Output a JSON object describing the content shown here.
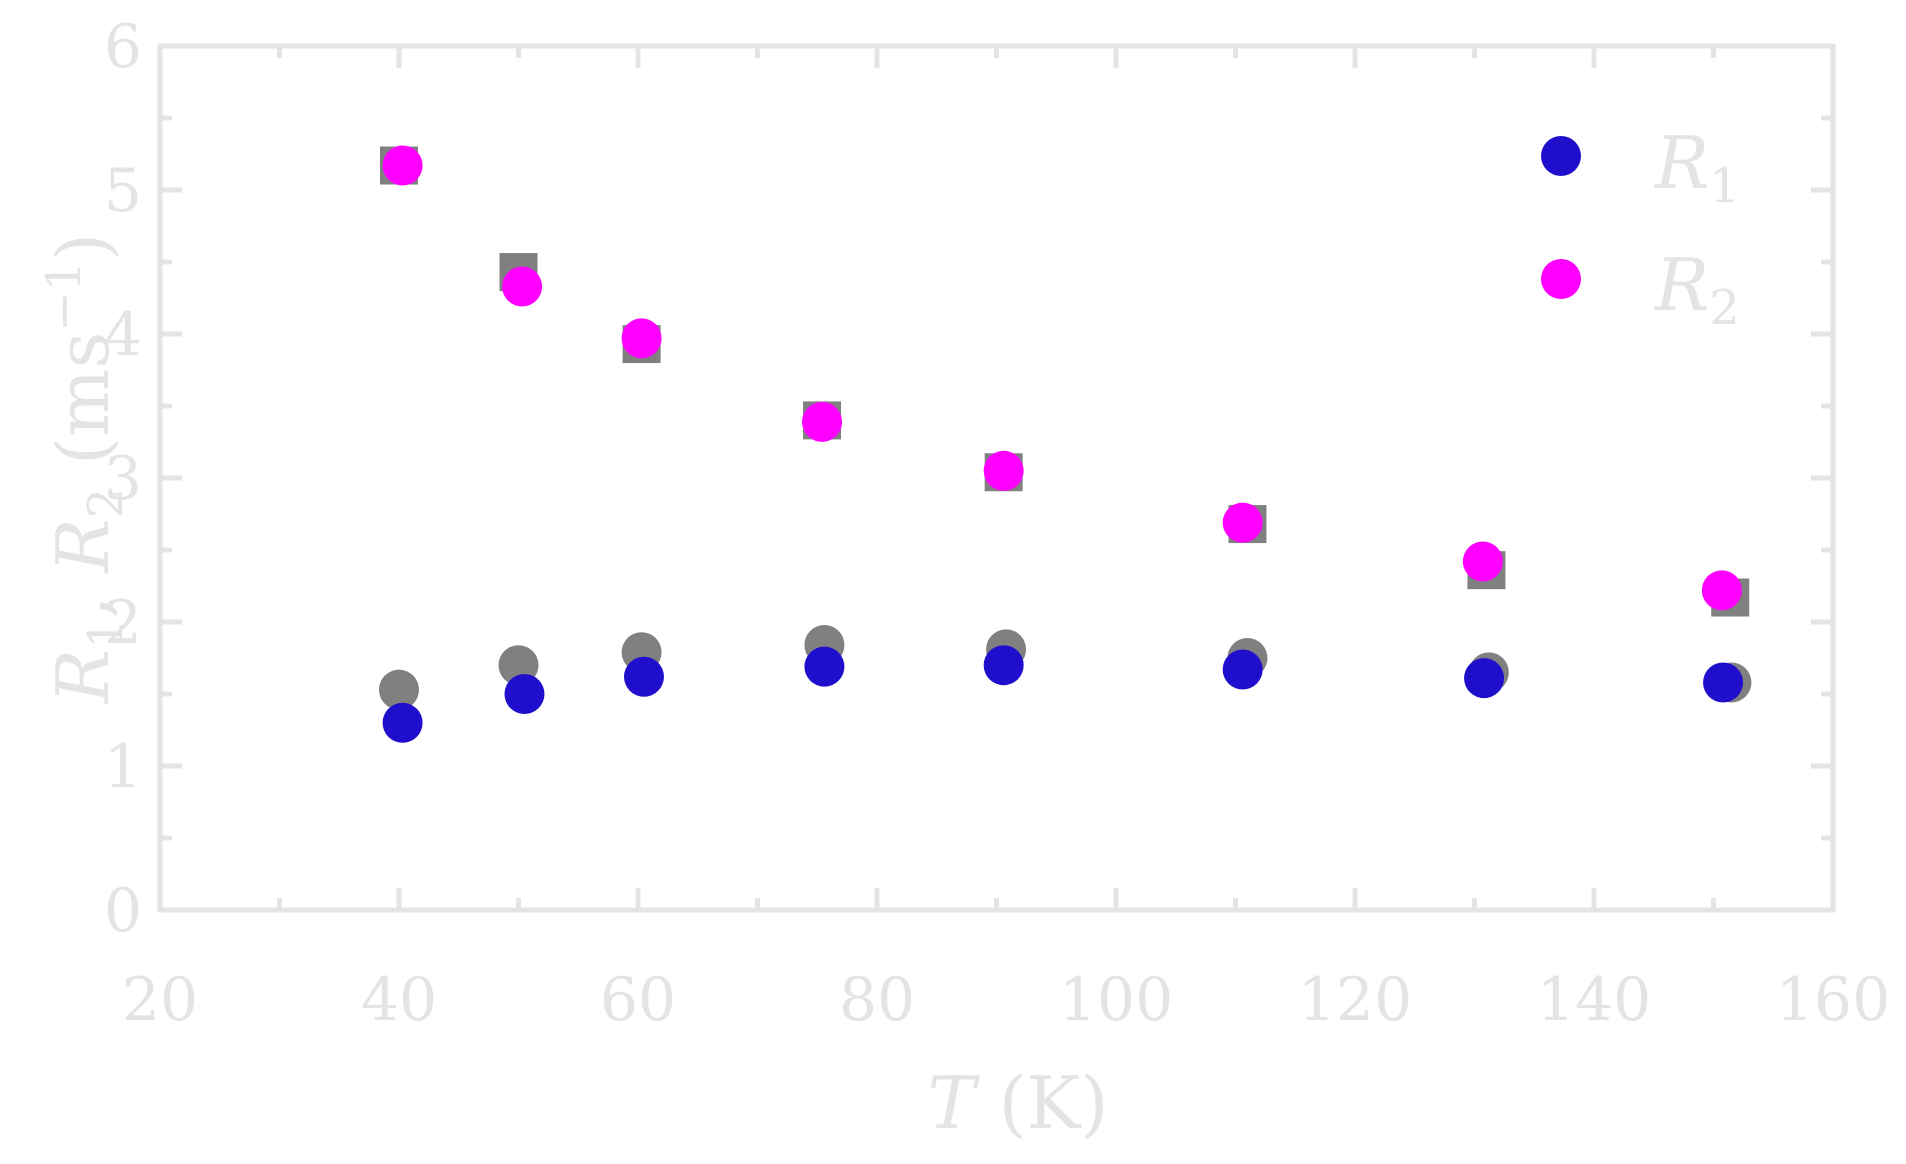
{
  "chart_data": {
    "type": "scatter",
    "xlabel": {
      "var": "T",
      "unit": " (K)"
    },
    "ylabel": {
      "main": "R",
      "sub1": "1",
      "sep": ", ",
      "sub2": "2",
      "unit_open": " (ms",
      "sup": "−1",
      "unit_close": ")"
    },
    "xlim": [
      20,
      160
    ],
    "ylim": [
      0,
      6
    ],
    "x_major_ticks": [
      20,
      40,
      60,
      80,
      100,
      120,
      140,
      160
    ],
    "x_minor_ticks": [
      30,
      50,
      70,
      90,
      110,
      130,
      150
    ],
    "y_major_ticks": [
      0,
      1,
      2,
      3,
      4,
      5,
      6
    ],
    "y_minor_ticks": [
      0.5,
      1.5,
      2.5,
      3.5,
      4.5,
      5.5
    ],
    "grid": false,
    "legend_position": "top-right",
    "colors": {
      "r1": "#1f0fcc",
      "r2": "#ff00ff",
      "reference": "#808080",
      "axes": "#e4e4e4"
    },
    "series": [
      {
        "name": "R",
        "sub": "1",
        "marker": "circle",
        "color": "#1f0fcc",
        "points": [
          [
            40.3,
            1.3
          ],
          [
            50.5,
            1.5
          ],
          [
            60.5,
            1.62
          ],
          [
            75.6,
            1.69
          ],
          [
            90.6,
            1.7
          ],
          [
            110.6,
            1.67
          ],
          [
            130.8,
            1.61
          ],
          [
            150.8,
            1.58
          ]
        ]
      },
      {
        "name": "R",
        "sub": "2",
        "marker": "circle",
        "color": "#ff00ff",
        "points": [
          [
            40.3,
            5.17
          ],
          [
            50.3,
            4.33
          ],
          [
            60.3,
            3.97
          ],
          [
            75.4,
            3.39
          ],
          [
            90.6,
            3.05
          ],
          [
            110.6,
            2.69
          ],
          [
            130.7,
            2.42
          ],
          [
            150.7,
            2.22
          ]
        ]
      },
      {
        "marker": "circle",
        "color": "#808080",
        "points": [
          [
            40.0,
            1.53
          ],
          [
            50.0,
            1.7
          ],
          [
            60.3,
            1.79
          ],
          [
            75.6,
            1.84
          ],
          [
            90.8,
            1.81
          ],
          [
            111.0,
            1.75
          ],
          [
            131.2,
            1.65
          ],
          [
            151.5,
            1.58
          ]
        ]
      },
      {
        "marker": "square",
        "color": "#808080",
        "points": [
          [
            40.0,
            5.17
          ],
          [
            50.0,
            4.43
          ],
          [
            60.3,
            3.93
          ],
          [
            75.4,
            3.4
          ],
          [
            90.6,
            3.04
          ],
          [
            111.0,
            2.68
          ],
          [
            131.0,
            2.36
          ],
          [
            151.4,
            2.17
          ]
        ]
      }
    ]
  }
}
